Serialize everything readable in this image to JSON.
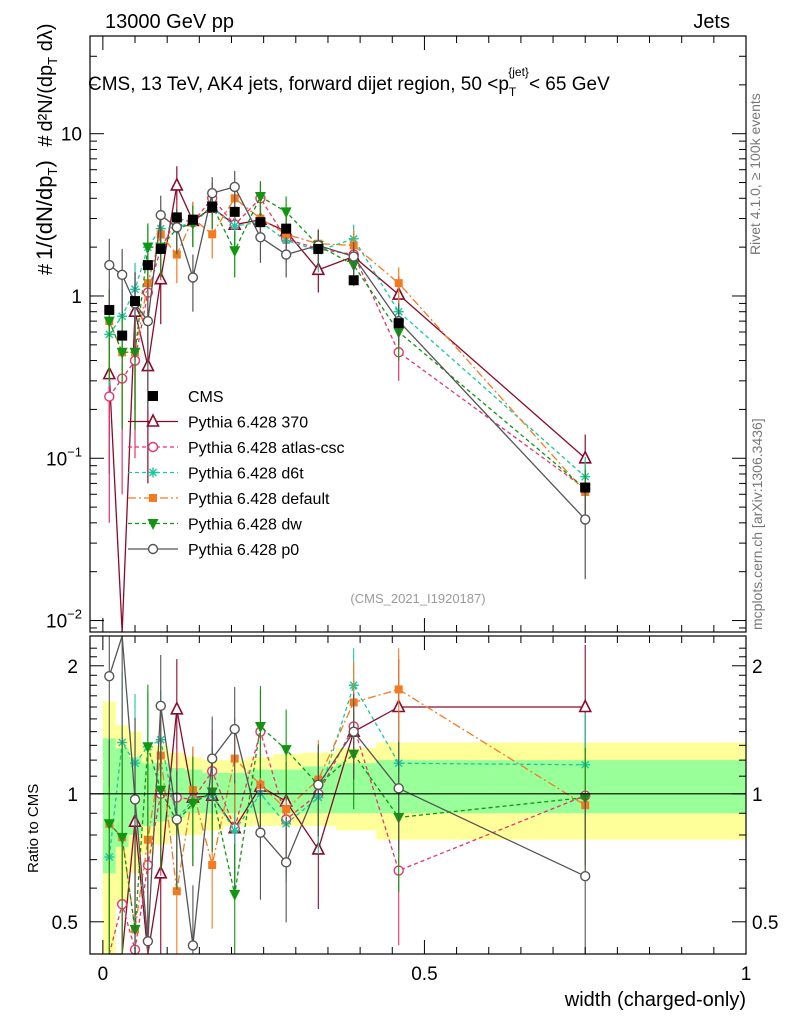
{
  "header": {
    "energy": "13000 GeV pp",
    "category": "Jets",
    "title": "CMS, 13 TeV, AK4 jets, forward dijet region, 50 <p_T^{jet}< 65 GeV",
    "rivet": "Rivet 4.1.0, ≥ 100k events",
    "mcplots": "mcplots.cern.ch [arXiv:1306.3436]",
    "analysis": "(CMS_2021_I1920187)",
    "xlabel": "width (charged-only)",
    "ratio_label": "Ratio to CMS",
    "ylabel_main": "1/(dN/dp_T) · d²N/(dp_T dλ)"
  },
  "chart_data": {
    "type": "scatter",
    "x": [
      0.01,
      0.03,
      0.05,
      0.07,
      0.09,
      0.115,
      0.14,
      0.17,
      0.205,
      0.245,
      0.285,
      0.335,
      0.39,
      0.46,
      0.75
    ],
    "main_ylim": [
      0.0085,
      40
    ],
    "main_yticks": [
      {
        "v": 0.01,
        "label": "10^-2"
      },
      {
        "v": 0.1,
        "label": "10^-1"
      },
      {
        "v": 1,
        "label": "1"
      },
      {
        "v": 10,
        "label": "10"
      }
    ],
    "ratio_ylim": [
      0.42,
      2.35
    ],
    "ratio_yticks": [
      0.5,
      1,
      2
    ],
    "xlim": [
      -0.02,
      1.0
    ],
    "xticks": [
      {
        "v": 0,
        "label": "0"
      },
      {
        "v": 0.5,
        "label": "0.5"
      },
      {
        "v": 1,
        "label": "1"
      }
    ],
    "cms": [
      0.82,
      0.57,
      0.93,
      1.55,
      1.95,
      3.05,
      2.95,
      3.55,
      3.3,
      2.85,
      2.6,
      1.95,
      1.25,
      0.68,
      0.066
    ],
    "band_yellow": [
      [
        0.4,
        1.65
      ],
      [
        0.55,
        1.45
      ],
      [
        0.65,
        1.4
      ],
      [
        0.72,
        1.3
      ],
      [
        0.76,
        1.3
      ],
      [
        0.8,
        1.25
      ],
      [
        0.8,
        1.22
      ],
      [
        0.82,
        1.2
      ],
      [
        0.84,
        1.2
      ],
      [
        0.84,
        1.22
      ],
      [
        0.84,
        1.24
      ],
      [
        0.84,
        1.25
      ],
      [
        0.82,
        1.28
      ],
      [
        0.78,
        1.32
      ],
      [
        0.78,
        1.32
      ]
    ],
    "band_green": [
      [
        0.65,
        1.35
      ],
      [
        0.75,
        1.28
      ],
      [
        0.8,
        1.22
      ],
      [
        0.84,
        1.18
      ],
      [
        0.86,
        1.18
      ],
      [
        0.88,
        1.15
      ],
      [
        0.9,
        1.14
      ],
      [
        0.9,
        1.12
      ],
      [
        0.9,
        1.12
      ],
      [
        0.9,
        1.14
      ],
      [
        0.9,
        1.14
      ],
      [
        0.9,
        1.16
      ],
      [
        0.9,
        1.18
      ],
      [
        0.9,
        1.2
      ],
      [
        0.9,
        1.2
      ]
    ],
    "series": [
      {
        "name": "Pythia 6.428 370",
        "color": "#8b0a2a",
        "dash": "",
        "marker": "triangle-open",
        "values": [
          0.33,
          0.0005,
          0.8,
          0.37,
          1.27,
          4.8,
          2.9,
          3.5,
          2.75,
          2.95,
          2.5,
          1.45,
          1.75,
          1.02,
          0.1
        ],
        "err": [
          0.25,
          0.0004,
          0.6,
          0.3,
          0.6,
          1.5,
          0.9,
          0.9,
          0.8,
          0.7,
          0.6,
          0.4,
          0.4,
          0.3,
          0.04
        ]
      },
      {
        "name": "Pythia 6.428 atlas-csc",
        "color": "#e8336b",
        "dash": "4,3",
        "marker": "circle-open",
        "values": [
          0.24,
          0.31,
          0.4,
          1.05,
          1.95,
          3.0,
          2.85,
          4.0,
          2.75,
          4.0,
          2.25,
          1.95,
          1.8,
          0.45,
          0.065
        ],
        "err": [
          0.2,
          0.25,
          0.3,
          0.6,
          0.7,
          0.9,
          0.8,
          1.0,
          0.8,
          1.0,
          0.6,
          0.5,
          0.4,
          0.15,
          0.02
        ]
      },
      {
        "name": "Pythia 6.428 d6t",
        "color": "#1ac8a0",
        "dash": "4,3",
        "marker": "asterisk",
        "values": [
          0.58,
          0.75,
          1.1,
          2.0,
          2.6,
          2.65,
          2.85,
          3.5,
          2.7,
          2.85,
          2.2,
          1.9,
          2.25,
          0.8,
          0.077
        ],
        "err": [
          0.3,
          0.35,
          0.5,
          0.7,
          0.8,
          0.8,
          0.8,
          0.9,
          0.8,
          0.7,
          0.6,
          0.5,
          0.5,
          0.2,
          0.025
        ]
      },
      {
        "name": "Pythia 6.428 default",
        "color": "#f47a22",
        "dash": "8,3,2,3",
        "marker": "square",
        "values": [
          0.7,
          0.45,
          0.45,
          1.2,
          2.4,
          1.8,
          3.0,
          2.4,
          4.0,
          3.0,
          2.4,
          2.1,
          2.05,
          1.2,
          0.062
        ],
        "err": [
          0.4,
          0.3,
          0.3,
          0.6,
          0.8,
          0.6,
          0.8,
          0.7,
          1.0,
          0.8,
          0.6,
          0.5,
          0.5,
          0.3,
          0.02
        ]
      },
      {
        "name": "Pythia 6.428 dw",
        "color": "#109610",
        "dash": "4,3",
        "marker": "triangle-down",
        "values": [
          0.7,
          0.45,
          0.45,
          2.0,
          2.0,
          2.6,
          2.8,
          3.6,
          1.9,
          4.1,
          3.3,
          2.05,
          1.55,
          0.6,
          0.065
        ],
        "err": [
          0.4,
          0.3,
          0.3,
          0.8,
          0.7,
          0.8,
          0.8,
          1.0,
          0.6,
          1.0,
          0.8,
          0.5,
          0.4,
          0.2,
          0.02
        ]
      },
      {
        "name": "Pythia 6.428 p0",
        "color": "#555555",
        "dash": "",
        "marker": "circle-open",
        "values": [
          1.55,
          1.35,
          0.9,
          0.7,
          3.15,
          2.65,
          1.3,
          4.3,
          4.7,
          2.3,
          1.8,
          2.05,
          1.75,
          0.7,
          0.042
        ],
        "err": [
          0.7,
          0.6,
          0.5,
          0.5,
          1.0,
          0.8,
          0.5,
          1.1,
          1.2,
          0.7,
          0.5,
          0.5,
          0.4,
          0.2,
          0.024
        ]
      }
    ],
    "ratio_values": [
      [
        0.42,
        0.42,
        0.86,
        0.42,
        0.65,
        1.58,
        0.98,
        0.99,
        0.83,
        1.04,
        0.96,
        0.74,
        1.4,
        1.6,
        1.6
      ],
      [
        0.42,
        0.55,
        0.43,
        0.68,
        1.0,
        0.98,
        0.97,
        1.13,
        0.83,
        1.4,
        0.87,
        1.0,
        1.44,
        0.66,
        0.99
      ],
      [
        0.71,
        1.32,
        1.18,
        1.29,
        1.34,
        0.87,
        0.97,
        0.99,
        0.82,
        1.0,
        0.85,
        0.98,
        1.8,
        1.18,
        1.17
      ],
      [
        0.85,
        0.79,
        0.48,
        0.78,
        1.23,
        0.59,
        1.02,
        0.68,
        1.21,
        1.05,
        0.92,
        1.08,
        1.64,
        1.76,
        0.94
      ],
      [
        0.85,
        0.79,
        0.48,
        1.29,
        1.02,
        0.86,
        0.95,
        1.01,
        0.58,
        1.44,
        1.27,
        1.05,
        1.24,
        0.88,
        0.98
      ],
      [
        1.89,
        2.36,
        0.97,
        0.45,
        1.61,
        0.87,
        0.44,
        1.21,
        1.42,
        0.81,
        0.69,
        1.05,
        1.4,
        1.03,
        0.64
      ]
    ]
  }
}
